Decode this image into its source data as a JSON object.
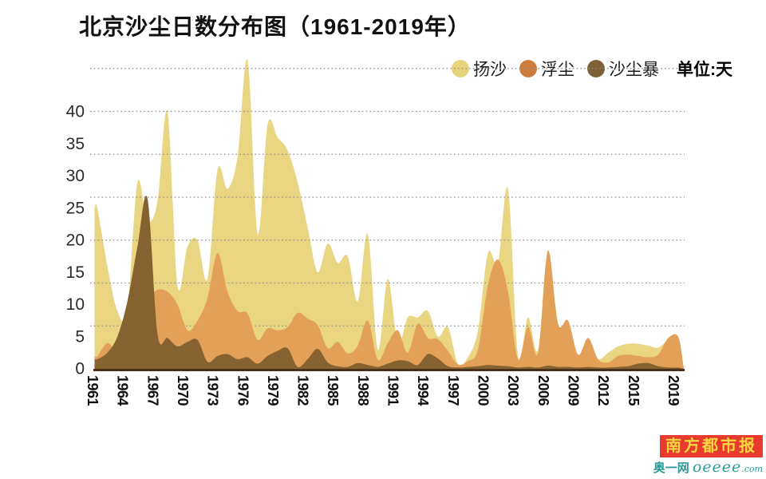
{
  "title": "北京沙尘日数分布图（1961-2019年）",
  "unit_label": "单位:天",
  "legend": [
    {
      "label": "扬沙",
      "color": "#e7d37a"
    },
    {
      "label": "浮尘",
      "color": "#cd7d3b"
    },
    {
      "label": "沙尘暴",
      "color": "#7d6136"
    }
  ],
  "branding": {
    "paper": "南方都市报",
    "site_cn": "奥一网 ",
    "site_en": "oeeee",
    "site_tld": ".com"
  },
  "chart_data": {
    "type": "area",
    "title": "北京沙尘日数分布图（1961-2019年）",
    "ylabel": "天",
    "ylim": [
      0,
      48
    ],
    "yticks": [
      0,
      5,
      10,
      15,
      20,
      25,
      30,
      35,
      40
    ],
    "grid": "dotted-horizontal",
    "legend_position": "top-right",
    "overlap_mode": "overlapping-not-stacked",
    "x_start": 1961,
    "x_end": 2019,
    "x_tick_labels": [
      "1961",
      "1964",
      "1967",
      "1970",
      "1973",
      "1976",
      "1979",
      "1982",
      "1985",
      "1988",
      "1991",
      "1994",
      "1997",
      "2000",
      "2003",
      "2006",
      "2009",
      "2012",
      "2015",
      "2019"
    ],
    "series": [
      {
        "name": "扬沙",
        "color": "#ead583",
        "values": [
          25,
          16,
          9,
          9,
          29,
          23,
          26,
          40,
          13,
          19,
          20,
          14,
          31,
          28,
          33,
          48,
          21,
          38,
          36,
          34,
          29,
          22,
          15,
          19.5,
          16.5,
          17.5,
          10.5,
          21,
          3,
          14,
          4,
          8,
          8,
          9,
          5,
          6.5,
          0.8,
          1.8,
          6,
          18,
          16.5,
          28,
          2,
          8,
          3,
          18.5,
          5,
          5.5,
          1.8,
          4,
          1.5,
          2.5,
          3.5,
          3.9,
          3.9,
          3.6,
          3.3,
          4.4,
          4.3
        ]
      },
      {
        "name": "浮尘",
        "color": "#e2a058",
        "values": [
          2,
          4,
          3,
          6,
          9,
          11,
          12.3,
          12,
          10,
          6,
          7.5,
          11,
          18,
          12,
          9,
          8.6,
          4.5,
          6.3,
          6,
          6.5,
          8.7,
          7.8,
          6.8,
          3.2,
          4.2,
          2.4,
          3.6,
          7.5,
          1.4,
          4,
          6,
          2.5,
          7,
          4.8,
          4.6,
          2.8,
          0.7,
          1.2,
          3,
          13,
          17,
          12,
          1.5,
          6.5,
          2.5,
          18.3,
          7,
          7.5,
          2.2,
          4.8,
          1.5,
          1,
          2,
          2.2,
          2,
          1.8,
          2.2,
          4.8,
          5
        ]
      },
      {
        "name": "沙尘暴",
        "color": "#85622f",
        "values": [
          1.5,
          2.5,
          5,
          10.5,
          19,
          26.5,
          5.5,
          4.8,
          3.5,
          4.2,
          4.5,
          1.1,
          2,
          2.3,
          1.5,
          1.8,
          0.8,
          2,
          2.8,
          3.2,
          0.3,
          1.5,
          3.1,
          1,
          0.4,
          0.3,
          0.9,
          0.6,
          0.3,
          0.8,
          1.3,
          1.2,
          0.6,
          2.3,
          1.6,
          0.4,
          0.2,
          0.3,
          0.4,
          0.6,
          0.5,
          0.4,
          0.2,
          0.3,
          0.2,
          0.5,
          0.3,
          0.3,
          0.2,
          0.3,
          0.2,
          0.2,
          0.3,
          0.4,
          0.8,
          0.9,
          0.4,
          0.2,
          0.2
        ]
      }
    ]
  }
}
